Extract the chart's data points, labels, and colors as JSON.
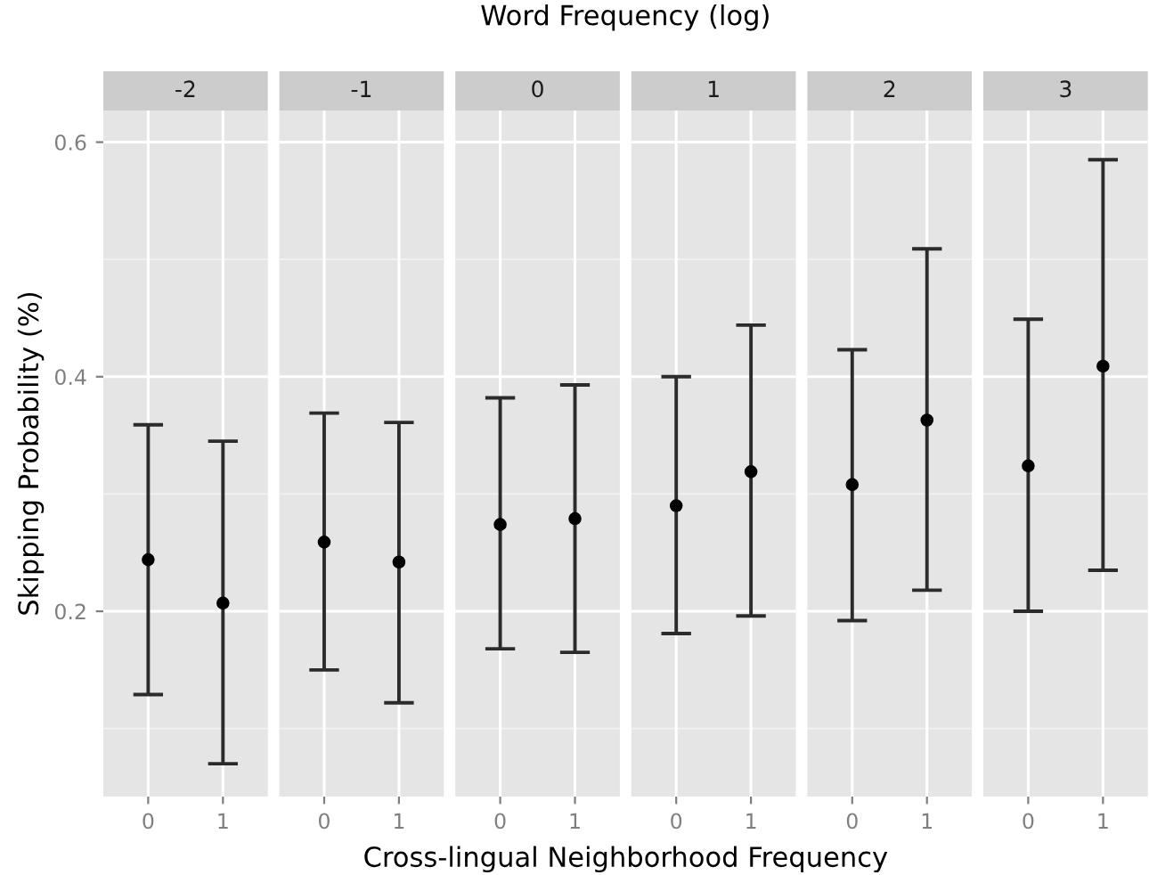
{
  "chart_data": [
    {
      "type": "scatter",
      "title": "-2",
      "annotations": [
        "Word Frequency (log)"
      ],
      "xlabel": "Cross-lingual Neighborhood Frequency",
      "ylabel": "Skipping Probability (%)",
      "categories": [
        "0",
        "1"
      ],
      "values": [
        0.244,
        0.207
      ],
      "errors": [
        [
          0.129,
          0.359
        ],
        [
          0.07,
          0.345
        ]
      ],
      "color": "#000000",
      "ylim": [
        0.042,
        0.627
      ],
      "yticks": [
        0.2,
        0.4,
        0.6
      ],
      "grid": true,
      "marker": "circle"
    },
    {
      "type": "scatter",
      "title": "-1",
      "categories": [
        "0",
        "1"
      ],
      "values": [
        0.259,
        0.242
      ],
      "errors": [
        [
          0.15,
          0.369
        ],
        [
          0.122,
          0.361
        ]
      ],
      "color": "#000000",
      "ylim": [
        0.042,
        0.627
      ],
      "yticks": [
        0.2,
        0.4,
        0.6
      ],
      "tick_labels": "x",
      "grid": true,
      "marker": "circle"
    },
    {
      "type": "scatter",
      "title": "0",
      "categories": [
        "0",
        "1"
      ],
      "values": [
        0.274,
        0.279
      ],
      "errors": [
        [
          0.168,
          0.382
        ],
        [
          0.165,
          0.393
        ]
      ],
      "color": "#000000",
      "ylim": [
        0.042,
        0.627
      ],
      "yticks": [
        0.2,
        0.4,
        0.6
      ],
      "tick_labels": "x",
      "grid": true,
      "marker": "circle"
    },
    {
      "type": "scatter",
      "title": "1",
      "categories": [
        "0",
        "1"
      ],
      "values": [
        0.29,
        0.319
      ],
      "errors": [
        [
          0.181,
          0.4
        ],
        [
          0.196,
          0.444
        ]
      ],
      "color": "#000000",
      "ylim": [
        0.042,
        0.627
      ],
      "yticks": [
        0.2,
        0.4,
        0.6
      ],
      "tick_labels": "x",
      "grid": true,
      "marker": "circle"
    },
    {
      "type": "scatter",
      "title": "2",
      "categories": [
        "0",
        "1"
      ],
      "values": [
        0.308,
        0.363
      ],
      "errors": [
        [
          0.192,
          0.423
        ],
        [
          0.218,
          0.509
        ]
      ],
      "color": "#000000",
      "ylim": [
        0.042,
        0.627
      ],
      "yticks": [
        0.2,
        0.4,
        0.6
      ],
      "tick_labels": "x",
      "grid": true,
      "marker": "circle"
    },
    {
      "type": "scatter",
      "title": "3",
      "categories": [
        "0",
        "1"
      ],
      "values": [
        0.324,
        0.409
      ],
      "errors": [
        [
          0.2,
          0.449
        ],
        [
          0.235,
          0.585
        ]
      ],
      "color": "#000000",
      "ylim": [
        0.042,
        0.627
      ],
      "yticks": [
        0.2,
        0.4,
        0.6
      ],
      "tick_labels": "x",
      "grid": true,
      "marker": "circle"
    }
  ]
}
